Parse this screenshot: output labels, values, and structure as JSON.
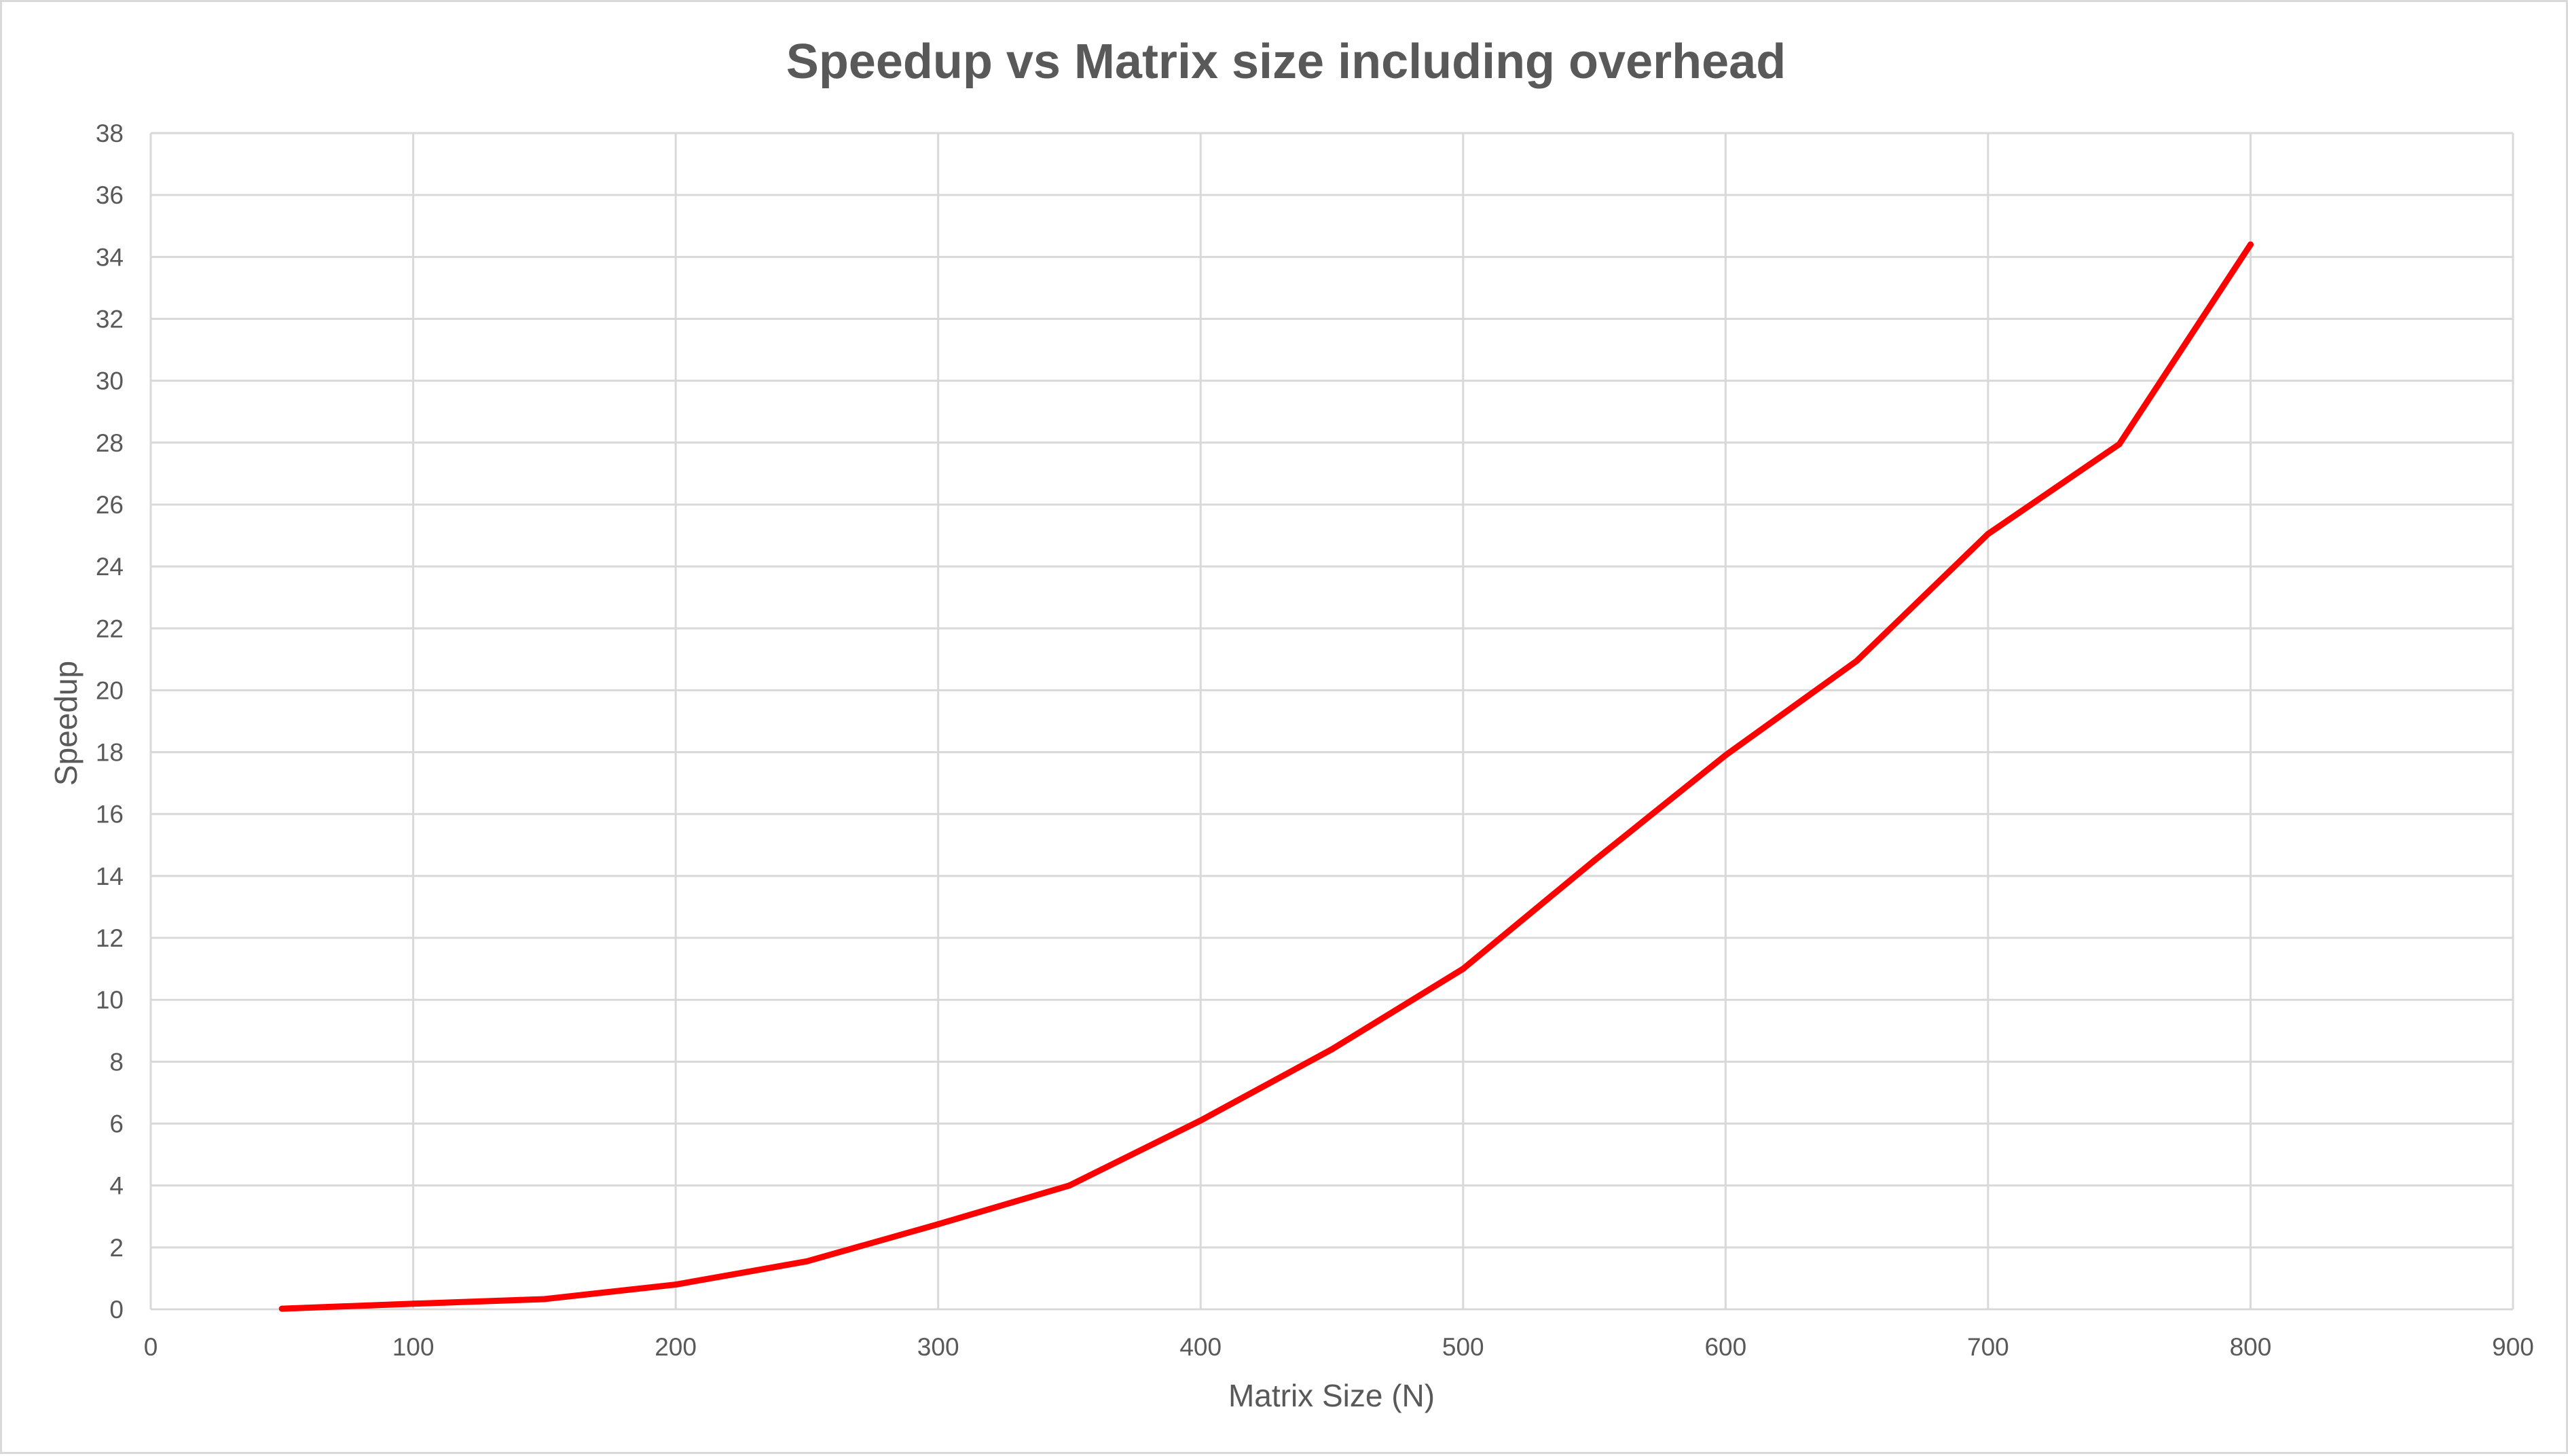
{
  "chart_data": {
    "type": "line",
    "title": "Speedup vs Matrix size including overhead",
    "xlabel": "Matrix Size (N)",
    "ylabel": "Speedup",
    "xlim": [
      0,
      900
    ],
    "ylim": [
      0,
      38
    ],
    "x_ticks": [
      0,
      100,
      200,
      300,
      400,
      500,
      600,
      700,
      800,
      900
    ],
    "y_ticks": [
      0,
      2,
      4,
      6,
      8,
      10,
      12,
      14,
      16,
      18,
      20,
      22,
      24,
      26,
      28,
      30,
      32,
      34,
      36,
      38
    ],
    "grid": true,
    "legend": "none",
    "series": [
      {
        "color": "#ff0000",
        "x": [
          50,
          100,
          150,
          200,
          250,
          300,
          350,
          400,
          450,
          500,
          550,
          600,
          650,
          700,
          750,
          800
        ],
        "y": [
          0.02,
          0.18,
          0.33,
          0.8,
          1.55,
          2.75,
          4.0,
          6.1,
          8.4,
          11.0,
          14.5,
          17.9,
          20.95,
          25.05,
          27.95,
          34.4
        ]
      }
    ]
  }
}
